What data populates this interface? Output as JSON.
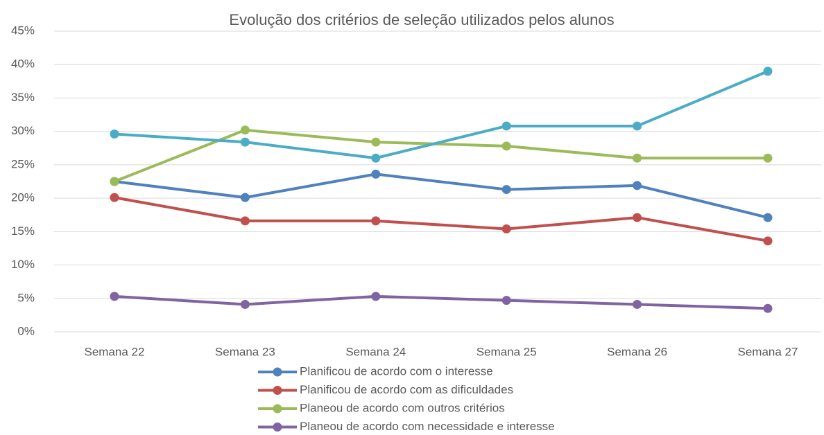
{
  "chart_data": {
    "type": "line",
    "title": "Evolução dos critérios de seleção utilizados pelos alunos",
    "categories": [
      "Semana 22",
      "Semana 23",
      "Semana 24",
      "Semana 25",
      "Semana 26",
      "Semana 27"
    ],
    "series": [
      {
        "name": "Planificou de acordo com o interesse",
        "color": "#4f81bd",
        "values": [
          22.5,
          20.1,
          23.6,
          21.3,
          21.9,
          17.1
        ]
      },
      {
        "name": "Planificou de acordo com as dificuldades",
        "color": "#c0504d",
        "values": [
          20.1,
          16.6,
          16.6,
          15.4,
          17.1,
          13.6
        ]
      },
      {
        "name": "Planeou de acordo com outros critérios",
        "color": "#9bbb59",
        "values": [
          22.5,
          30.2,
          28.4,
          27.8,
          26.0,
          26.0
        ]
      },
      {
        "name": "Planeou de acordo com necessidade e interesse",
        "color": "#8064a2",
        "values": [
          5.3,
          4.1,
          5.3,
          4.7,
          4.1,
          3.5
        ]
      },
      {
        "color": "#4bacc6",
        "values": [
          29.6,
          28.4,
          26.0,
          30.8,
          30.8,
          39.0
        ]
      }
    ],
    "ylim": [
      0,
      45
    ],
    "yticks": [
      {
        "value": 0,
        "label": "0%"
      },
      {
        "value": 5,
        "label": "5%"
      },
      {
        "value": 10,
        "label": "10%"
      },
      {
        "value": 15,
        "label": "15%"
      },
      {
        "value": 20,
        "label": "20%"
      },
      {
        "value": 25,
        "label": "25%"
      },
      {
        "value": 30,
        "label": "30%"
      },
      {
        "value": 35,
        "label": "35%"
      },
      {
        "value": 40,
        "label": "40%"
      },
      {
        "value": 45,
        "label": "45%"
      }
    ],
    "grid": true,
    "legend": "bottom"
  }
}
